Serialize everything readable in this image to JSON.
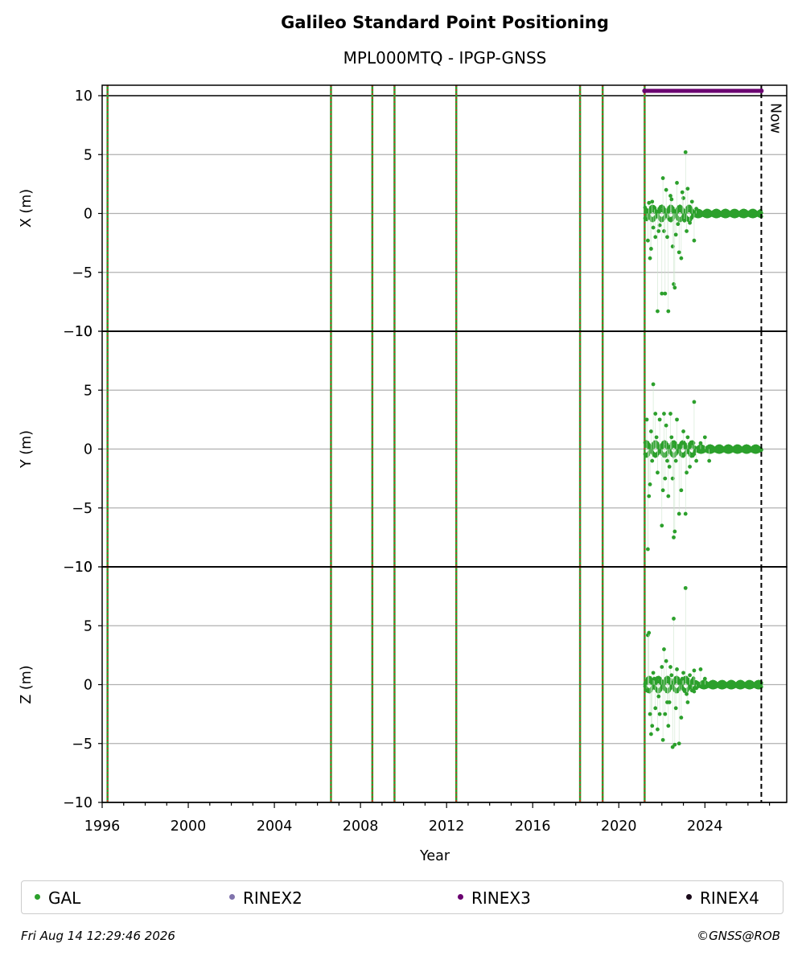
{
  "title": "Galileo Standard Point Positioning",
  "subtitle": "MPL000MTQ - IPGP-GNSS",
  "legend": [
    {
      "label": "GAL",
      "color": "#2ca02c"
    },
    {
      "label": "RINEX2",
      "color": "#8073ac"
    },
    {
      "label": "RINEX3",
      "color": "#6a0070"
    },
    {
      "label": "RINEX4",
      "color": "#1a0a1a"
    }
  ],
  "footer": {
    "timestamp": "Fri Aug 14 12:29:46 2026",
    "copyright": "©GNSS@ROB"
  },
  "chart_data": {
    "type": "scatter",
    "xlabel": "Year",
    "xlim": [
      1996.0,
      2027.8
    ],
    "x_ticks": [
      1996,
      2000,
      2004,
      2008,
      2012,
      2016,
      2020,
      2024
    ],
    "now_year": 2026.62,
    "now_label": "Now",
    "event_lines": [
      1996.25,
      2006.63,
      2008.55,
      2009.58,
      2012.45,
      2018.2,
      2019.25,
      2021.2
    ],
    "rinex3_interval": [
      2021.2,
      2026.62
    ],
    "panels": [
      {
        "ylabel": "X (m)",
        "ylim": [
          -10,
          10
        ],
        "y_ticks": [
          10,
          5,
          0,
          -5,
          -10
        ],
        "series": [
          {
            "name": "GAL",
            "color": "#2ca02c",
            "points": [
              [
                2021.3,
                -0.5
              ],
              [
                2021.4,
                0.9
              ],
              [
                2021.45,
                -3.8
              ],
              [
                2021.5,
                -3
              ],
              [
                2021.55,
                1
              ],
              [
                2021.6,
                -1.2
              ],
              [
                2021.7,
                -2
              ],
              [
                2021.8,
                -8.3
              ],
              [
                2021.9,
                -1
              ],
              [
                2022.0,
                -6.8
              ],
              [
                2022.05,
                3
              ],
              [
                2022.1,
                -1.5
              ],
              [
                2022.15,
                -6.8
              ],
              [
                2022.2,
                2
              ],
              [
                2022.3,
                -8.3
              ],
              [
                2022.35,
                -0.5
              ],
              [
                2022.4,
                1.5
              ],
              [
                2022.5,
                -2.8
              ],
              [
                2022.55,
                -6
              ],
              [
                2022.6,
                -6.3
              ],
              [
                2022.7,
                2.6
              ],
              [
                2022.8,
                -3.3
              ],
              [
                2022.9,
                -3.8
              ],
              [
                2023.0,
                1.3
              ],
              [
                2023.1,
                5.2
              ],
              [
                2023.2,
                2.1
              ],
              [
                2023.3,
                -0.8
              ],
              [
                2023.4,
                1
              ],
              [
                2023.5,
                -2.3
              ],
              [
                2023.6,
                0.4
              ],
              [
                2022.25,
                -2
              ],
              [
                2022.45,
                1.2
              ],
              [
                2022.65,
                -1.8
              ],
              [
                2022.95,
                1.8
              ],
              [
                2023.15,
                -1.5
              ],
              [
                2021.35,
                -2.3
              ],
              [
                2021.65,
                0.5
              ],
              [
                2021.85,
                -1.5
              ],
              [
                2022.75,
                -0.9
              ],
              [
                2023.05,
                -0.6
              ]
            ]
          }
        ]
      },
      {
        "ylabel": "Y (m)",
        "ylim": [
          -10,
          10
        ],
        "y_ticks": [
          10,
          5,
          0,
          -5,
          -10
        ],
        "series": [
          {
            "name": "GAL",
            "color": "#2ca02c",
            "points": [
              [
                2021.3,
                2.5
              ],
              [
                2021.35,
                -8.5
              ],
              [
                2021.4,
                -4
              ],
              [
                2021.5,
                1.5
              ],
              [
                2021.6,
                5.5
              ],
              [
                2021.7,
                3
              ],
              [
                2021.8,
                -2
              ],
              [
                2021.9,
                2.5
              ],
              [
                2022.0,
                -6.5
              ],
              [
                2022.05,
                -3.5
              ],
              [
                2022.1,
                3
              ],
              [
                2022.15,
                -2.5
              ],
              [
                2022.2,
                2
              ],
              [
                2022.3,
                -4
              ],
              [
                2022.35,
                -1.5
              ],
              [
                2022.4,
                3
              ],
              [
                2022.5,
                -2.5
              ],
              [
                2022.55,
                -7.5
              ],
              [
                2022.6,
                -7
              ],
              [
                2022.7,
                2.5
              ],
              [
                2022.8,
                -5.5
              ],
              [
                2022.9,
                -3.5
              ],
              [
                2023.0,
                1.5
              ],
              [
                2023.1,
                -5.5
              ],
              [
                2023.2,
                1
              ],
              [
                2023.3,
                -1.5
              ],
              [
                2023.4,
                0.5
              ],
              [
                2023.5,
                4
              ],
              [
                2023.6,
                -1
              ],
              [
                2023.8,
                0.5
              ],
              [
                2024.0,
                1
              ],
              [
                2024.2,
                -1
              ],
              [
                2021.45,
                -3
              ],
              [
                2021.55,
                -1
              ],
              [
                2021.75,
                1
              ],
              [
                2022.25,
                -1
              ],
              [
                2022.45,
                1
              ],
              [
                2022.65,
                -1
              ],
              [
                2022.95,
                0.5
              ],
              [
                2023.15,
                -2
              ]
            ]
          }
        ]
      },
      {
        "ylabel": "Z (m)",
        "ylim": [
          -10,
          10
        ],
        "y_ticks": [
          10,
          5,
          0,
          -5,
          -10
        ],
        "series": [
          {
            "name": "GAL",
            "color": "#2ca02c",
            "points": [
              [
                2021.3,
                -0.5
              ],
              [
                2021.35,
                4.2
              ],
              [
                2021.4,
                4.4
              ],
              [
                2021.5,
                -4.2
              ],
              [
                2021.55,
                -3.5
              ],
              [
                2021.6,
                1
              ],
              [
                2021.7,
                -2
              ],
              [
                2021.8,
                -3.8
              ],
              [
                2021.9,
                -2.5
              ],
              [
                2022.0,
                1.5
              ],
              [
                2022.05,
                -4.7
              ],
              [
                2022.1,
                3
              ],
              [
                2022.15,
                -2.5
              ],
              [
                2022.2,
                2
              ],
              [
                2022.3,
                -3.5
              ],
              [
                2022.35,
                -1.5
              ],
              [
                2022.4,
                1.5
              ],
              [
                2022.5,
                -5.3
              ],
              [
                2022.55,
                5.6
              ],
              [
                2022.6,
                -5.1
              ],
              [
                2022.7,
                1.3
              ],
              [
                2022.8,
                -5
              ],
              [
                2022.9,
                -2.8
              ],
              [
                2023.0,
                1
              ],
              [
                2023.1,
                8.2
              ],
              [
                2023.2,
                -1.5
              ],
              [
                2023.3,
                0.8
              ],
              [
                2023.4,
                -0.5
              ],
              [
                2023.5,
                1.2
              ],
              [
                2023.6,
                -0.3
              ],
              [
                2023.8,
                1.3
              ],
              [
                2024.0,
                0.5
              ],
              [
                2021.45,
                -2.5
              ],
              [
                2021.65,
                0.5
              ],
              [
                2021.85,
                -1
              ],
              [
                2022.25,
                -1.5
              ],
              [
                2022.45,
                0.8
              ],
              [
                2022.65,
                -2
              ],
              [
                2022.95,
                0.5
              ],
              [
                2023.15,
                -0.8
              ]
            ]
          }
        ]
      }
    ]
  }
}
